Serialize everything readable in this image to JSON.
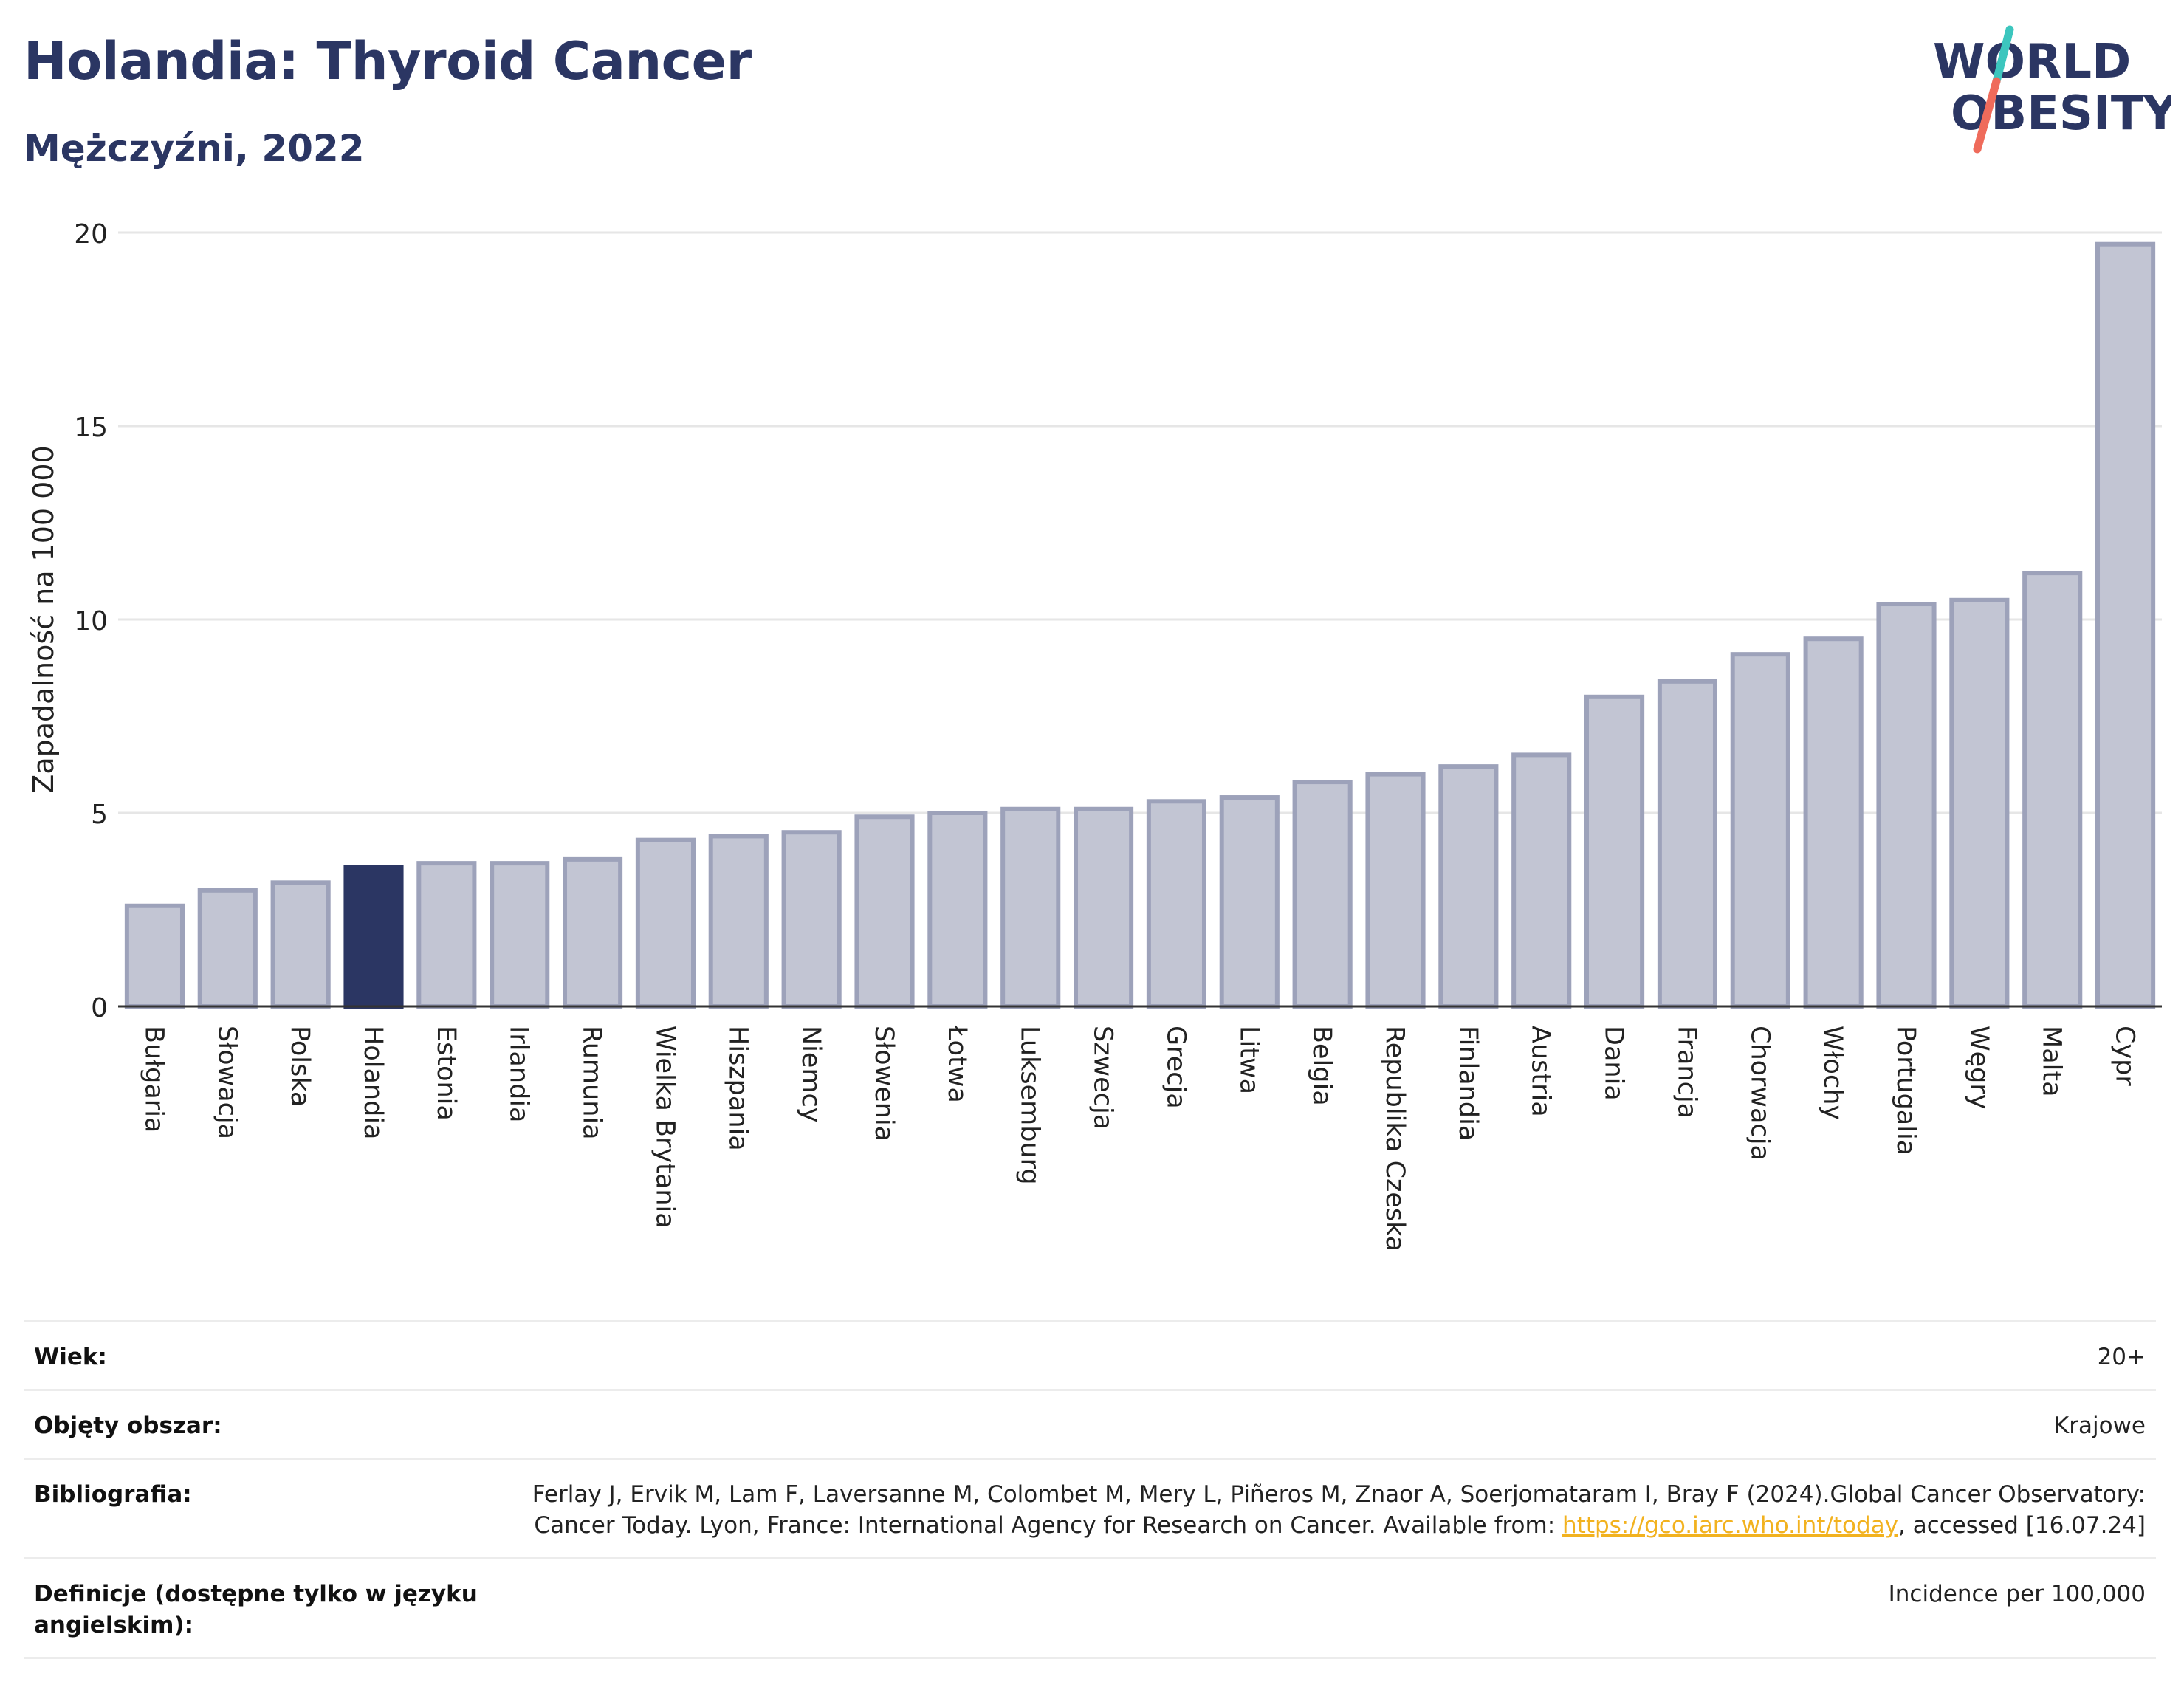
{
  "header": {
    "title": "Holandia: Thyroid Cancer",
    "subtitle": "Mężczyźni, 2022"
  },
  "logo": {
    "line1": "WORLD",
    "line2": "OBESITY"
  },
  "colors": {
    "highlight": "#2b3663",
    "bar_fill": "#c2c5d3",
    "bar_stroke": "#9da2ba",
    "grid": "#e6e6e6",
    "logo_text": "#2b3663",
    "logo_slash_top": "#3cc6be",
    "logo_slash_bottom": "#ef6b5b"
  },
  "chart_data": {
    "type": "bar",
    "ylabel": "Zapadalność na 100 000",
    "ylim": [
      0,
      20
    ],
    "yticks": [
      0,
      5,
      10,
      15,
      20
    ],
    "highlight": "Holandia",
    "categories": [
      "Bułgaria",
      "Słowacja",
      "Polska",
      "Holandia",
      "Estonia",
      "Irlandia",
      "Rumunia",
      "Wielka Brytania",
      "Hiszpania",
      "Niemcy",
      "Słowenia",
      "Łotwa",
      "Luksemburg",
      "Szwecja",
      "Grecja",
      "Litwa",
      "Belgia",
      "Republika Czeska",
      "Finlandia",
      "Austria",
      "Dania",
      "Francja",
      "Chorwacja",
      "Włochy",
      "Portugalia",
      "Węgry",
      "Malta",
      "Cypr"
    ],
    "values": [
      2.6,
      3.0,
      3.2,
      3.6,
      3.7,
      3.7,
      3.8,
      4.3,
      4.4,
      4.5,
      4.9,
      5.0,
      5.1,
      5.1,
      5.3,
      5.4,
      5.8,
      6.0,
      6.2,
      6.5,
      8.0,
      8.4,
      9.1,
      9.5,
      10.4,
      10.5,
      11.2,
      19.7
    ],
    "grid": true
  },
  "info": {
    "rows": [
      {
        "label": "Wiek:",
        "value": "20+"
      },
      {
        "label": "Objęty obszar:",
        "value": "Krajowe"
      },
      {
        "label": "Bibliografia:",
        "value_pre": "Ferlay J, Ervik M, Lam F, Laversanne M, Colombet M, Mery L, Piñeros M, Znaor A, Soerjomataram I, Bray F (2024).Global Cancer Observatory: Cancer Today. Lyon, France: International Agency for Research on Cancer. Available from: ",
        "link": "https://gco.iarc.who.int/today",
        "value_post": ", accessed [16.07.24]"
      },
      {
        "label": "Definicje (dostępne tylko w języku angielskim):",
        "value": "Incidence per 100,000"
      }
    ]
  }
}
